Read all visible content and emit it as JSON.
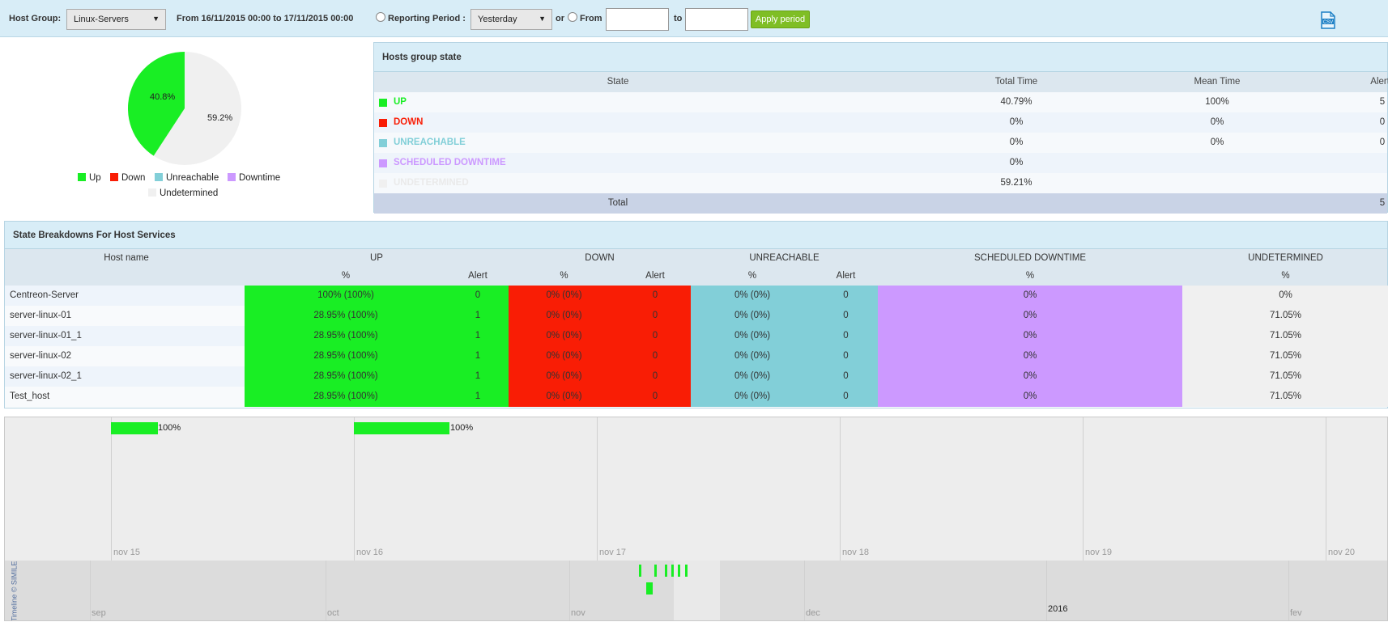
{
  "toolbar": {
    "host_group_label": "Host Group:",
    "host_group_value": "Linux-Servers",
    "range_text": "From 16/11/2015 00:00 to 17/11/2015 00:00",
    "reporting_period_label": "Reporting Period :",
    "reporting_period_value": "Yesterday",
    "or_label": "or",
    "from_label": "From",
    "from_value": "",
    "to_label": "to",
    "to_value": "",
    "apply_label": "Apply period",
    "csv_icon": "csv-file-icon"
  },
  "pie": {
    "up_label": "40.8%",
    "undetermined_label": "59.2%",
    "up_fraction": 0.408,
    "legend": [
      "Up",
      "Down",
      "Unreachable",
      "Downtime",
      "Undetermined"
    ]
  },
  "colors": {
    "up": "#19ee24",
    "down": "#f91d05",
    "unreachable": "#82cfd8",
    "downtime": "#cc99ff",
    "undetermined": "#f0f0f0"
  },
  "hosts_group_state": {
    "title": "Hosts group state",
    "headers": [
      "State",
      "Total Time",
      "Mean Time",
      "Alerts"
    ],
    "rows": [
      {
        "state": "UP",
        "total": "40.79%",
        "mean": "100%",
        "alerts": "5"
      },
      {
        "state": "DOWN",
        "total": "0%",
        "mean": "0%",
        "alerts": "0"
      },
      {
        "state": "UNREACHABLE",
        "total": "0%",
        "mean": "0%",
        "alerts": "0"
      },
      {
        "state": "SCHEDULED DOWNTIME",
        "total": "0%",
        "mean": "",
        "alerts": ""
      },
      {
        "state": "UNDETERMINED",
        "total": "59.21%",
        "mean": "",
        "alerts": ""
      }
    ],
    "total_label": "Total",
    "total_alerts": "5"
  },
  "breakdown": {
    "title": "State Breakdowns For Host Services",
    "group_headers": [
      "Host name",
      "UP",
      "DOWN",
      "UNREACHABLE",
      "SCHEDULED DOWNTIME",
      "UNDETERMINED"
    ],
    "sub_headers": [
      "%",
      "Alert",
      "%",
      "Alert",
      "%",
      "Alert",
      "%",
      "%"
    ],
    "rows": [
      {
        "host": "Centreon-Server",
        "up": "100% (100%)",
        "up_alert": "0",
        "down": "0% (0%)",
        "down_alert": "0",
        "unr": "0% (0%)",
        "unr_alert": "0",
        "sched": "0%",
        "undet": "0%"
      },
      {
        "host": "server-linux-01",
        "up": "28.95% (100%)",
        "up_alert": "1",
        "down": "0% (0%)",
        "down_alert": "0",
        "unr": "0% (0%)",
        "unr_alert": "0",
        "sched": "0%",
        "undet": "71.05%"
      },
      {
        "host": "server-linux-01_1",
        "up": "28.95% (100%)",
        "up_alert": "1",
        "down": "0% (0%)",
        "down_alert": "0",
        "unr": "0% (0%)",
        "unr_alert": "0",
        "sched": "0%",
        "undet": "71.05%"
      },
      {
        "host": "server-linux-02",
        "up": "28.95% (100%)",
        "up_alert": "1",
        "down": "0% (0%)",
        "down_alert": "0",
        "unr": "0% (0%)",
        "unr_alert": "0",
        "sched": "0%",
        "undet": "71.05%"
      },
      {
        "host": "server-linux-02_1",
        "up": "28.95% (100%)",
        "up_alert": "1",
        "down": "0% (0%)",
        "down_alert": "0",
        "unr": "0% (0%)",
        "unr_alert": "0",
        "sched": "0%",
        "undet": "71.05%"
      },
      {
        "host": "Test_host",
        "up": "28.95% (100%)",
        "up_alert": "1",
        "down": "0% (0%)",
        "down_alert": "0",
        "unr": "0% (0%)",
        "unr_alert": "0",
        "sched": "0%",
        "undet": "71.05%"
      }
    ]
  },
  "timeline": {
    "day_ticks": [
      "nov 15",
      "nov 16",
      "nov 17",
      "nov 18",
      "nov 19",
      "nov 20"
    ],
    "month_ticks": [
      "sep",
      "oct",
      "nov",
      "dec",
      "2016",
      "fev"
    ],
    "event_labels": [
      "100%",
      "100%"
    ],
    "credit": "Timeline © SIMILE"
  }
}
